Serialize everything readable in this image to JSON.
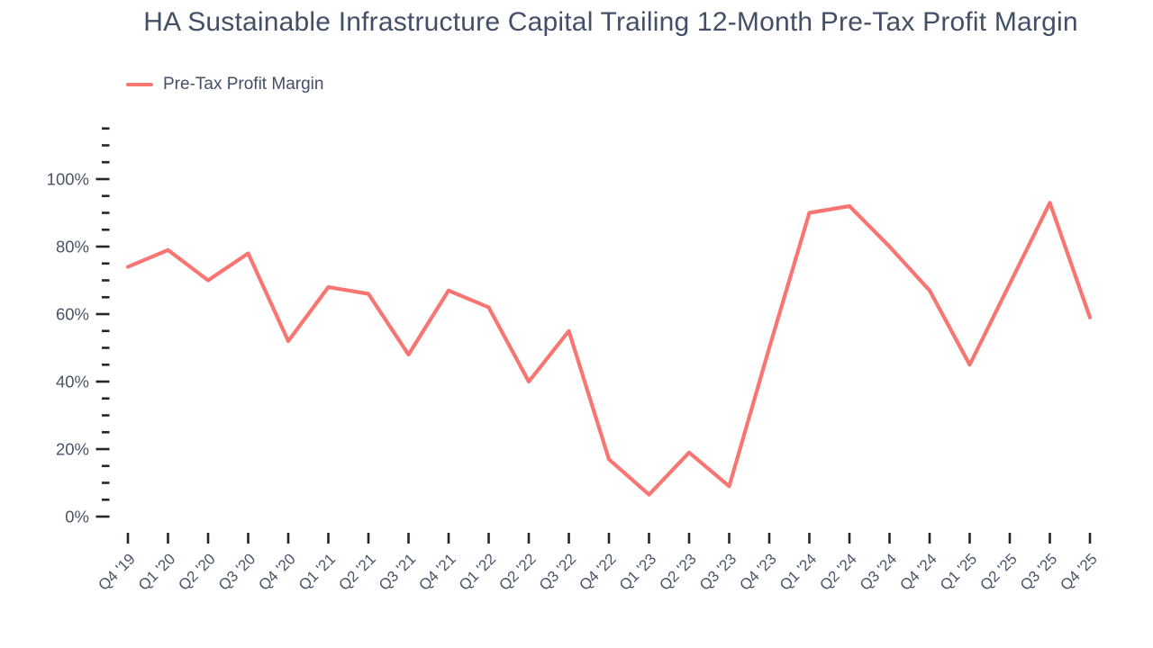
{
  "title": "HA Sustainable Infrastructure Capital Trailing 12-Month Pre-Tax Profit Margin",
  "legend": {
    "label": "Pre-Tax Profit Margin"
  },
  "colors": {
    "line": "#f97572",
    "title_text": "#434f66",
    "axis_label_text": "#4a5568",
    "tick_mark": "#23262b",
    "background": "#ffffff"
  },
  "chart_data": {
    "type": "line",
    "title": "HA Sustainable Infrastructure Capital Trailing 12-Month Pre-Tax Profit Margin",
    "categories": [
      "Q4 '19",
      "Q1 '20",
      "Q2 '20",
      "Q3 '20",
      "Q4 '20",
      "Q1 '21",
      "Q2 '21",
      "Q3 '21",
      "Q4 '21",
      "Q1 '22",
      "Q2 '22",
      "Q3 '22",
      "Q4 '22",
      "Q1 '23",
      "Q2 '23",
      "Q3 '23",
      "Q4 '23",
      "Q1 '24",
      "Q2 '24",
      "Q3 '24",
      "Q4 '24",
      "Q1 '25",
      "Q2 '25",
      "Q3 '25",
      "Q4 '25"
    ],
    "series": [
      {
        "name": "Pre-Tax Profit Margin",
        "color": "#f97572",
        "values": [
          74,
          79,
          70,
          78,
          52,
          68,
          66,
          48,
          67,
          62,
          40,
          55,
          17,
          6.5,
          19,
          9,
          50,
          90,
          92,
          80,
          67,
          45,
          69,
          93,
          59
        ]
      }
    ],
    "xlabel": "",
    "ylabel": "",
    "y_unit": "%",
    "ylim": [
      0,
      115
    ],
    "y_major_ticks": [
      0,
      20,
      40,
      60,
      80,
      100
    ],
    "y_tick_labels": [
      "0%",
      "20%",
      "40%",
      "60%",
      "80%",
      "100%"
    ],
    "y_minor_tick_step": 5,
    "grid": false,
    "legend_position": "top-left",
    "x_tick_label_rotation": -45
  }
}
